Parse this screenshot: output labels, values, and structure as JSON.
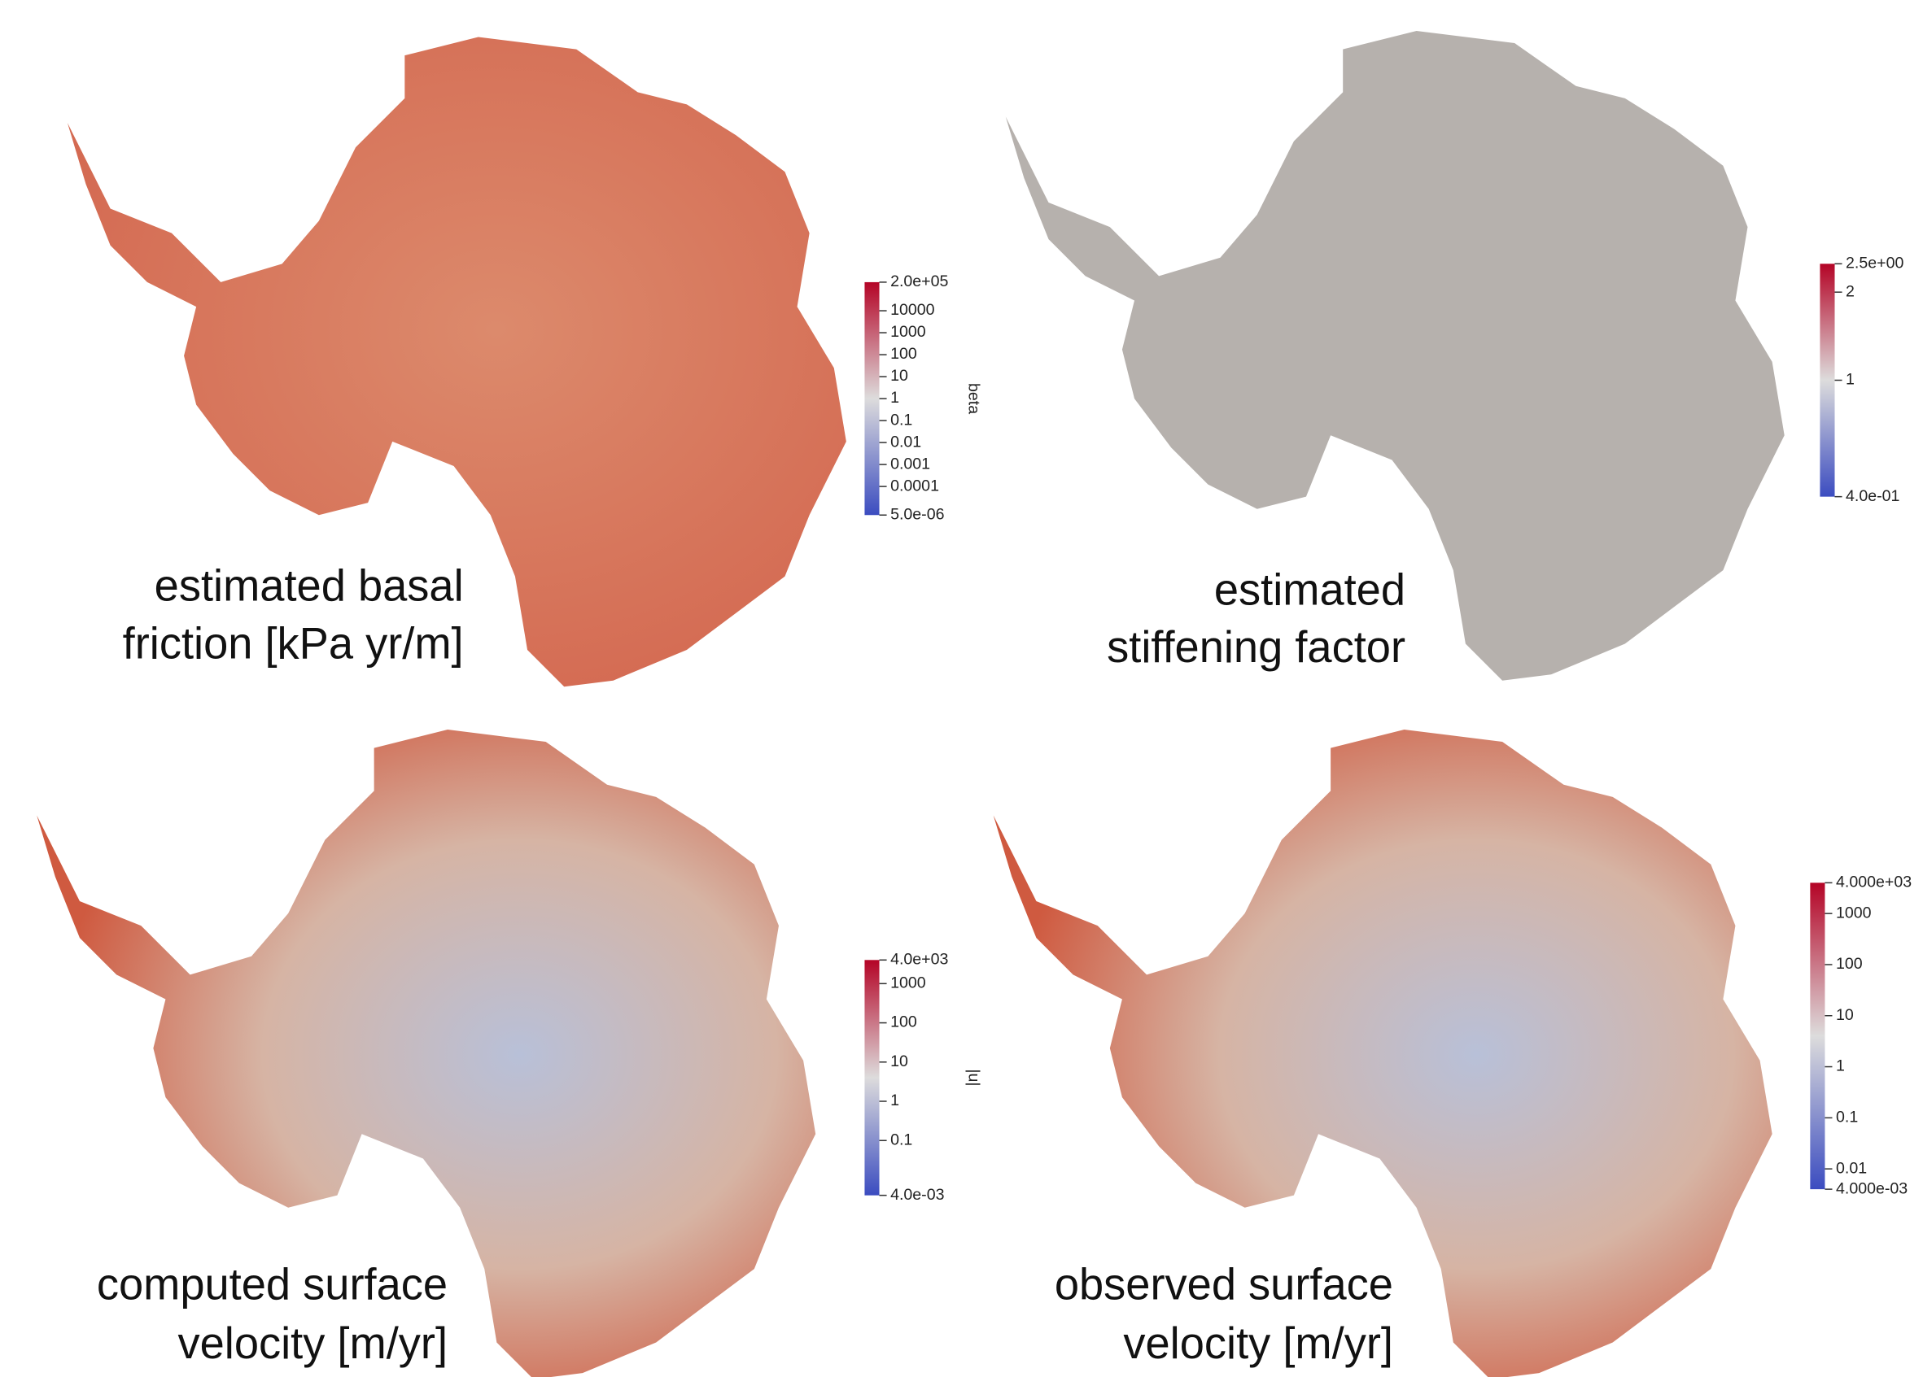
{
  "panels": [
    {
      "label_lines": [
        "estimated basal",
        "friction [kPa yr/m]"
      ],
      "colorbar": {
        "title": "beta",
        "ticks": [
          "2.0e+05",
          "10000",
          "1000",
          "100",
          "10",
          "1",
          "0.1",
          "0.01",
          "0.001",
          "0.0001",
          "5.0e-06"
        ]
      }
    },
    {
      "label_lines": [
        "estimated",
        "stiffening factor"
      ],
      "colorbar": {
        "ticks": [
          "2.5e+00",
          "2",
          "1",
          "4.0e-01"
        ]
      }
    },
    {
      "label_lines": [
        "computed surface",
        "velocity [m/yr]"
      ],
      "colorbar": {
        "title": "|u|",
        "ticks": [
          "4.0e+03",
          "1000",
          "100",
          "10",
          "1",
          "0.1",
          "4.0e-03"
        ]
      }
    },
    {
      "label_lines": [
        "observed surface",
        "velocity [m/yr]"
      ],
      "colorbar": {
        "ticks": [
          "4.000e+03",
          "1000",
          "100",
          "10",
          "1",
          "0.1",
          "0.01",
          "4.000e-03"
        ]
      }
    }
  ]
}
